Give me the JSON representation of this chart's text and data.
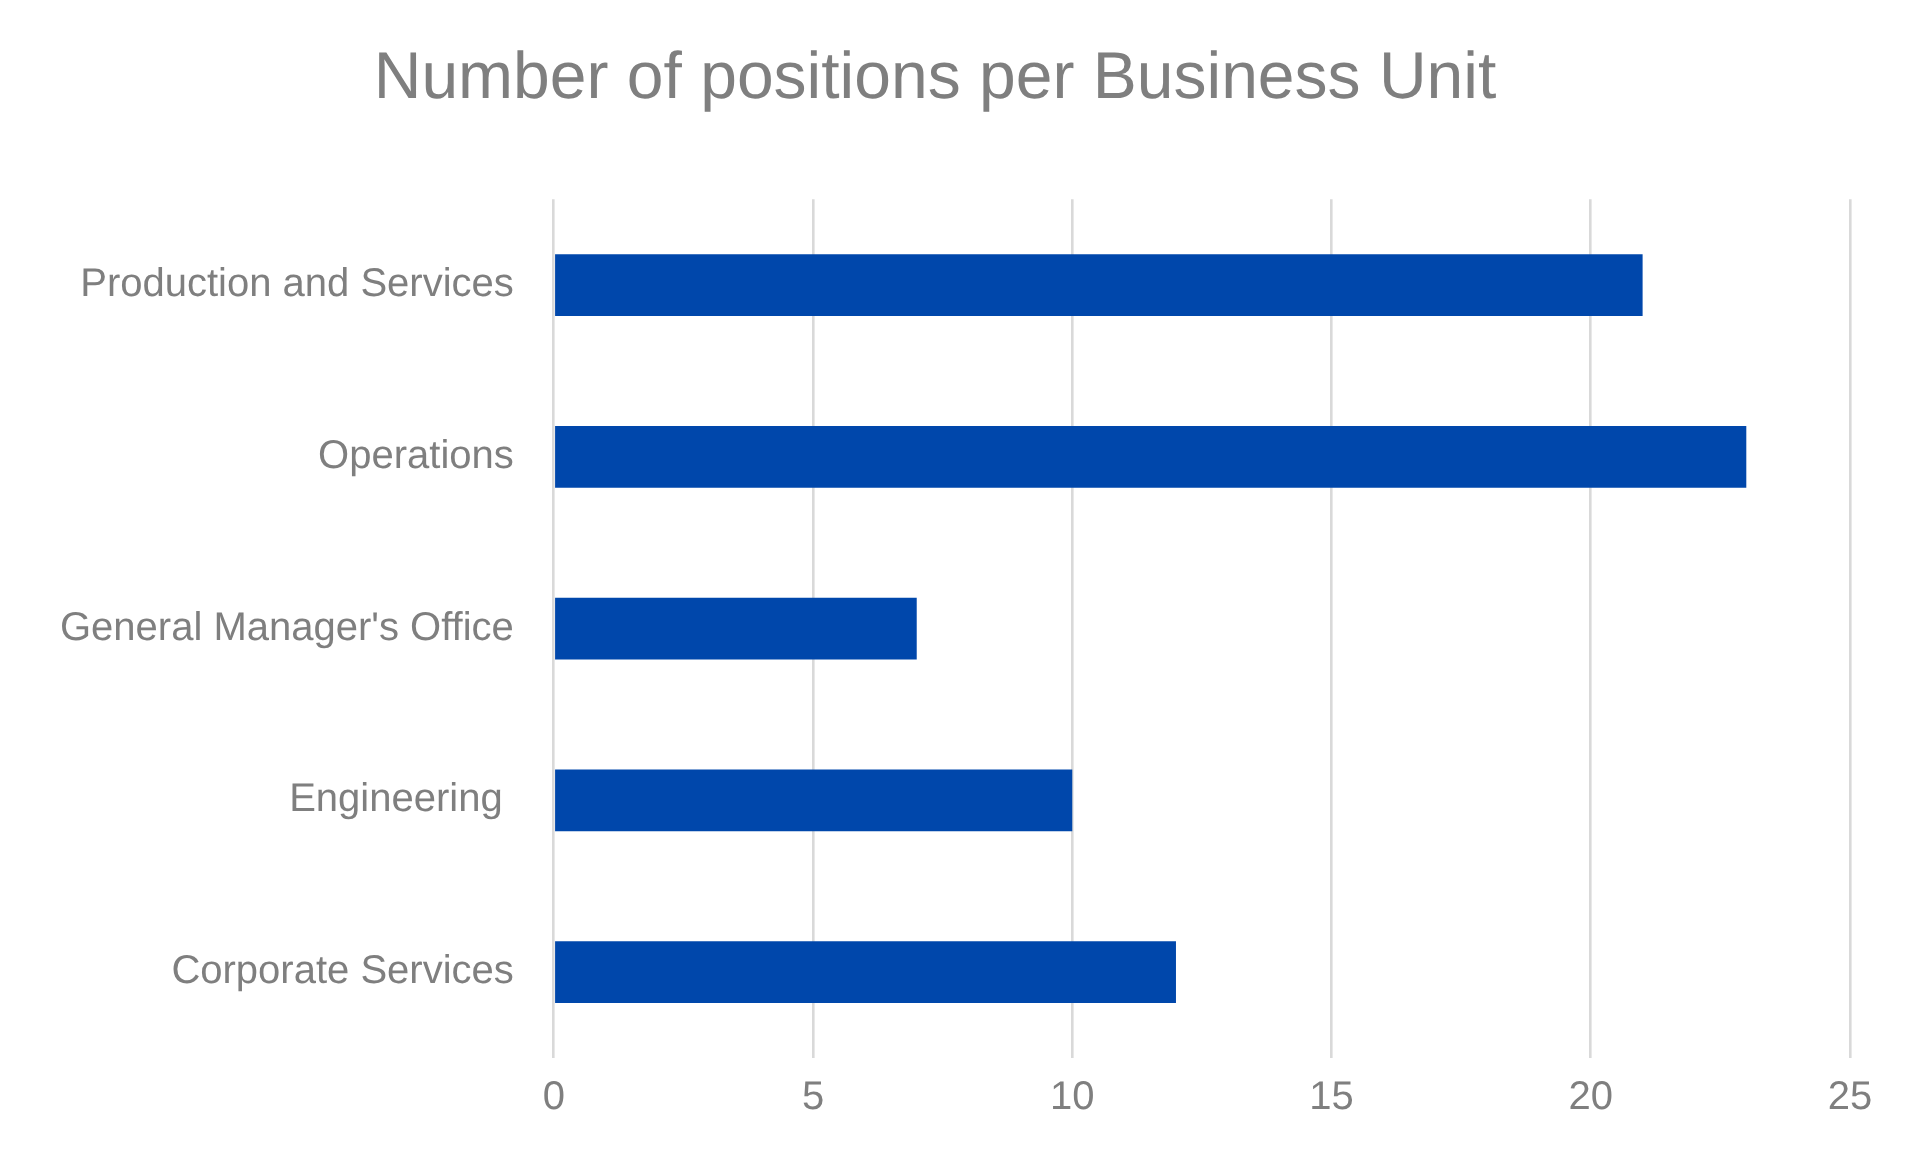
{
  "chart_data": {
    "type": "bar",
    "orientation": "horizontal",
    "title": "Number of positions per Business Unit",
    "categories": [
      "Production and Services",
      "Operations",
      "General Manager's Office",
      "Engineering ",
      "Corporate Services"
    ],
    "values": [
      21,
      23,
      7,
      10,
      12
    ],
    "color": "#0047ab",
    "xlim": [
      0,
      25
    ],
    "xticks": [
      0,
      5,
      10,
      15,
      20,
      25
    ],
    "grid": "x"
  }
}
